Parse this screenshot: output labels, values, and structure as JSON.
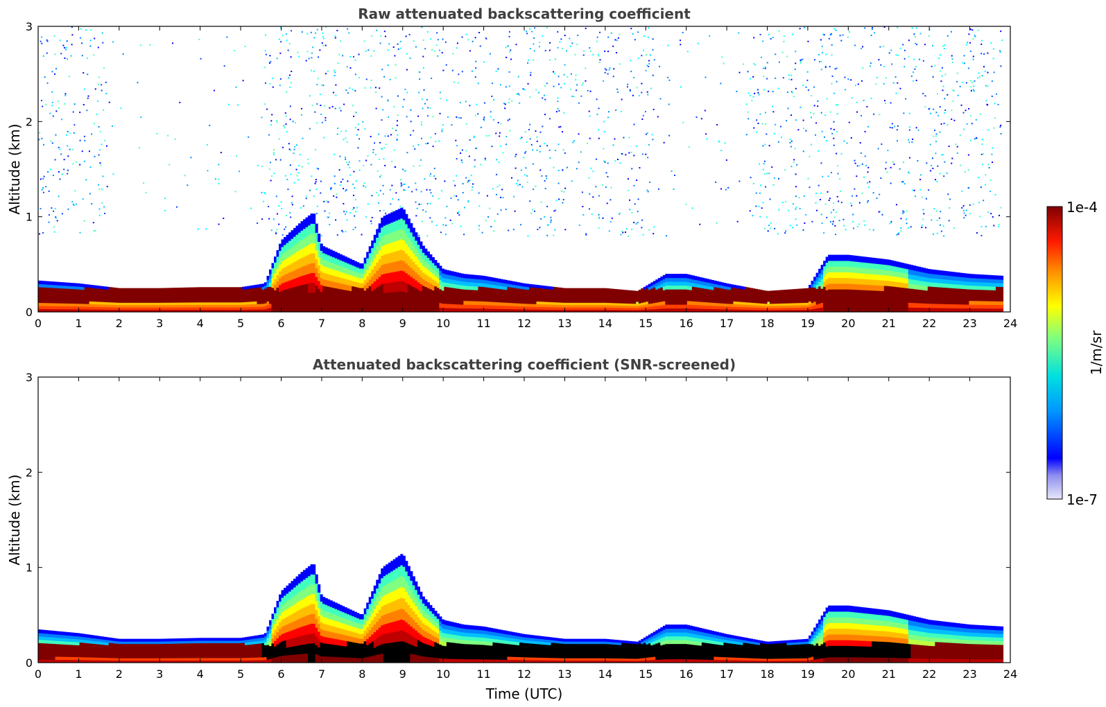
{
  "figure": {
    "colorbar": {
      "max_label": "1e-4",
      "min_label": "1e-7",
      "unit_label": "1/m/sr",
      "scale": "log"
    }
  },
  "chart_data": [
    {
      "type": "heatmap",
      "title": "Raw attenuated backscattering coefficient",
      "xlabel": "",
      "ylabel": "Altitude (km)",
      "xlim": [
        0,
        24
      ],
      "ylim": [
        0,
        3
      ],
      "xticks": [
        "0",
        "1",
        "2",
        "3",
        "4",
        "5",
        "6",
        "7",
        "8",
        "9",
        "10",
        "11",
        "12",
        "13",
        "14",
        "15",
        "16",
        "17",
        "18",
        "19",
        "20",
        "21",
        "22",
        "23",
        "24"
      ],
      "yticks": [
        "0",
        "1",
        "2",
        "3"
      ],
      "colorscale": "jet",
      "value_range": [
        1e-07,
        0.0001
      ],
      "boundary_layer_top_km": [
        [
          0,
          0.33
        ],
        [
          1,
          0.3
        ],
        [
          2,
          0.25
        ],
        [
          3,
          0.25
        ],
        [
          4,
          0.26
        ],
        [
          5,
          0.26
        ],
        [
          5.6,
          0.3
        ],
        [
          6,
          0.75
        ],
        [
          6.5,
          0.95
        ],
        [
          6.8,
          1.05
        ],
        [
          7,
          0.7
        ],
        [
          7.5,
          0.6
        ],
        [
          8,
          0.5
        ],
        [
          8.5,
          1.0
        ],
        [
          9,
          1.1
        ],
        [
          9.5,
          0.7
        ],
        [
          10,
          0.45
        ],
        [
          10.5,
          0.4
        ],
        [
          11,
          0.38
        ],
        [
          12,
          0.3
        ],
        [
          13,
          0.25
        ],
        [
          14,
          0.25
        ],
        [
          14.8,
          0.22
        ],
        [
          15.5,
          0.4
        ],
        [
          16,
          0.4
        ],
        [
          17,
          0.3
        ],
        [
          18,
          0.22
        ],
        [
          19,
          0.25
        ],
        [
          19.5,
          0.6
        ],
        [
          20,
          0.6
        ],
        [
          21,
          0.55
        ],
        [
          22,
          0.45
        ],
        [
          23,
          0.4
        ],
        [
          23.8,
          0.38
        ]
      ],
      "high_aerosol_layer_km": [
        0.1,
        0.25
      ],
      "background_noise_altitude_km": [
        0.8,
        3.0
      ]
    },
    {
      "type": "heatmap",
      "title": "Attenuated backscattering coefficient (SNR-screened)",
      "xlabel": "Time (UTC)",
      "ylabel": "Altitude (km)",
      "xlim": [
        0,
        24
      ],
      "ylim": [
        0,
        3
      ],
      "xticks": [
        "0",
        "1",
        "2",
        "3",
        "4",
        "5",
        "6",
        "7",
        "8",
        "9",
        "10",
        "11",
        "12",
        "13",
        "14",
        "15",
        "16",
        "17",
        "18",
        "19",
        "20",
        "21",
        "22",
        "23",
        "24"
      ],
      "yticks": [
        "0",
        "1",
        "2",
        "3"
      ],
      "colorscale": "jet",
      "value_range": [
        1e-07,
        0.0001
      ],
      "boundary_layer_top_km": [
        [
          0,
          0.35
        ],
        [
          1,
          0.31
        ],
        [
          2,
          0.25
        ],
        [
          3,
          0.25
        ],
        [
          4,
          0.26
        ],
        [
          5,
          0.26
        ],
        [
          5.6,
          0.3
        ],
        [
          6,
          0.75
        ],
        [
          6.5,
          0.95
        ],
        [
          6.8,
          1.05
        ],
        [
          7,
          0.7
        ],
        [
          7.5,
          0.6
        ],
        [
          8,
          0.5
        ],
        [
          8.5,
          1.0
        ],
        [
          9,
          1.15
        ],
        [
          9.5,
          0.7
        ],
        [
          10,
          0.45
        ],
        [
          10.5,
          0.4
        ],
        [
          11,
          0.38
        ],
        [
          12,
          0.3
        ],
        [
          13,
          0.25
        ],
        [
          14,
          0.25
        ],
        [
          14.8,
          0.22
        ],
        [
          15.5,
          0.4
        ],
        [
          16,
          0.4
        ],
        [
          17,
          0.3
        ],
        [
          18,
          0.22
        ],
        [
          19,
          0.25
        ],
        [
          19.5,
          0.6
        ],
        [
          20,
          0.6
        ],
        [
          21,
          0.55
        ],
        [
          22,
          0.45
        ],
        [
          23,
          0.4
        ],
        [
          23.8,
          0.38
        ]
      ],
      "high_aerosol_layer_km": [
        0.05,
        0.2
      ],
      "background_noise_altitude_km": []
    }
  ]
}
